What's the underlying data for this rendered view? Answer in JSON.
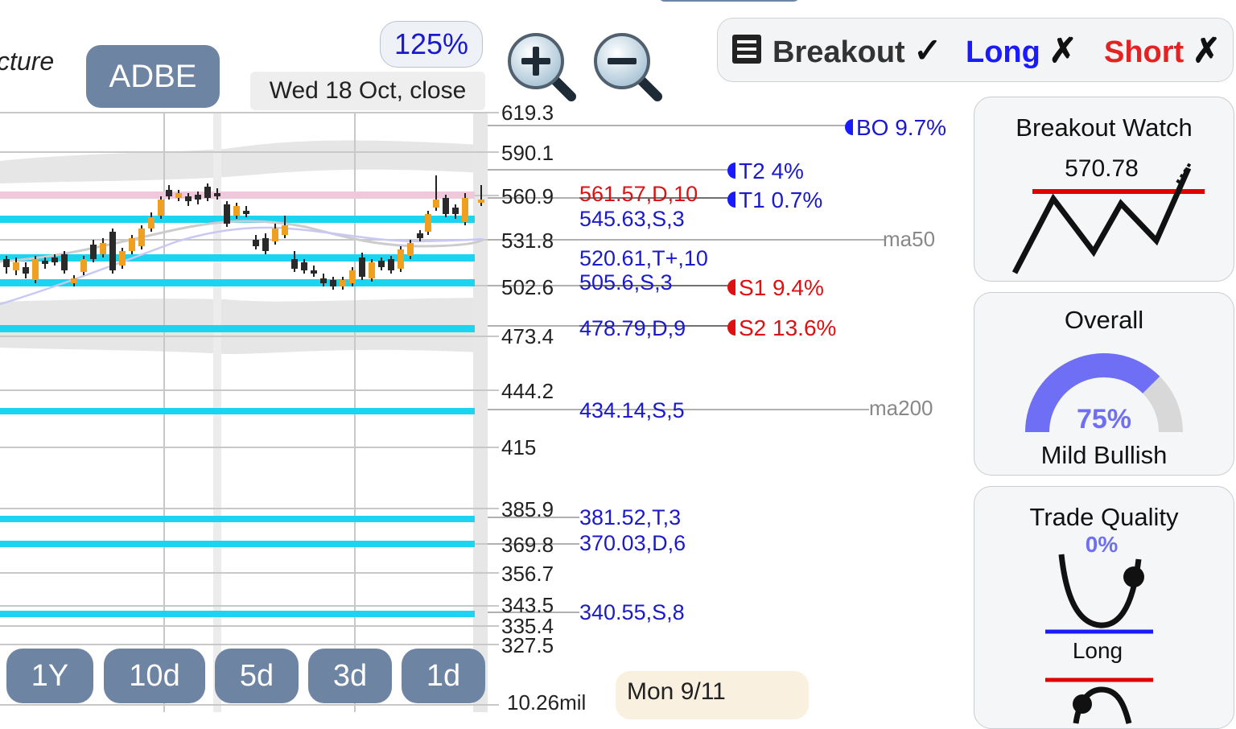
{
  "header": {
    "structure_partial": "cture",
    "ticker": "ADBE",
    "zoom_level": "125%",
    "date_label": "Wed 18 Oct, close"
  },
  "zoom_controls": {
    "zoom_in_icon": "zoom-in-magnifier",
    "zoom_out_icon": "zoom-out-magnifier"
  },
  "filters": {
    "list_icon": "list-icon",
    "breakout": {
      "label": "Breakout",
      "mark": "✓",
      "color": "#222222"
    },
    "long": {
      "label": "Long",
      "mark": "✗",
      "color": "#1a1aff"
    },
    "short": {
      "label": "Short",
      "mark": "✗",
      "color": "#e52222"
    }
  },
  "price_axis": [
    "619.3",
    "590.1",
    "560.9",
    "531.8",
    "502.6",
    "473.4",
    "444.2",
    "415",
    "385.9",
    "369.8",
    "356.7",
    "343.5",
    "335.4",
    "327.5"
  ],
  "volume_label": "10.26mil",
  "levels": [
    {
      "text": "561.57,D,10",
      "color": "#dd1111"
    },
    {
      "text": "545.63,S,3",
      "color": "#1a1acc"
    },
    {
      "text": "520.61,T+,10",
      "color": "#1a1acc"
    },
    {
      "text": "505.6,S,3",
      "color": "#1a1acc"
    },
    {
      "text": "478.79,D,9",
      "color": "#1a1acc"
    },
    {
      "text": "434.14,S,5",
      "color": "#1a1acc"
    },
    {
      "text": "381.52,T,3",
      "color": "#1a1acc"
    },
    {
      "text": "370.03,D,6",
      "color": "#1a1acc"
    },
    {
      "text": "340.55,S,8",
      "color": "#1a1acc"
    }
  ],
  "targets": [
    {
      "text": "BO 9.7%",
      "color": "#1a1acc"
    },
    {
      "text": "T2 4%",
      "color": "#1a1acc"
    },
    {
      "text": "T1 0.7%",
      "color": "#1a1acc"
    },
    {
      "text": "S1 9.4%",
      "color": "#dd1111"
    },
    {
      "text": "S2 13.6%",
      "color": "#dd1111"
    }
  ],
  "moving_averages": {
    "ma50": "ma50",
    "ma200": "ma200"
  },
  "panels": {
    "breakout_watch": {
      "title": "Breakout Watch",
      "value": "570.78"
    },
    "overall": {
      "title": "Overall",
      "percent": "75%",
      "fraction": 0.75,
      "label": "Mild Bullish"
    },
    "trade_quality": {
      "title": "Trade Quality",
      "percent": "0%",
      "label": "Long"
    }
  },
  "range_buttons": [
    "1Y",
    "10d",
    "5d",
    "3d",
    "1d"
  ],
  "footer": {
    "date": "Mon 9/11"
  },
  "colors": {
    "accent_button": "#6e84a3",
    "support_band": "#1ad4f0",
    "resistance_band": "#f0c8dc"
  }
}
